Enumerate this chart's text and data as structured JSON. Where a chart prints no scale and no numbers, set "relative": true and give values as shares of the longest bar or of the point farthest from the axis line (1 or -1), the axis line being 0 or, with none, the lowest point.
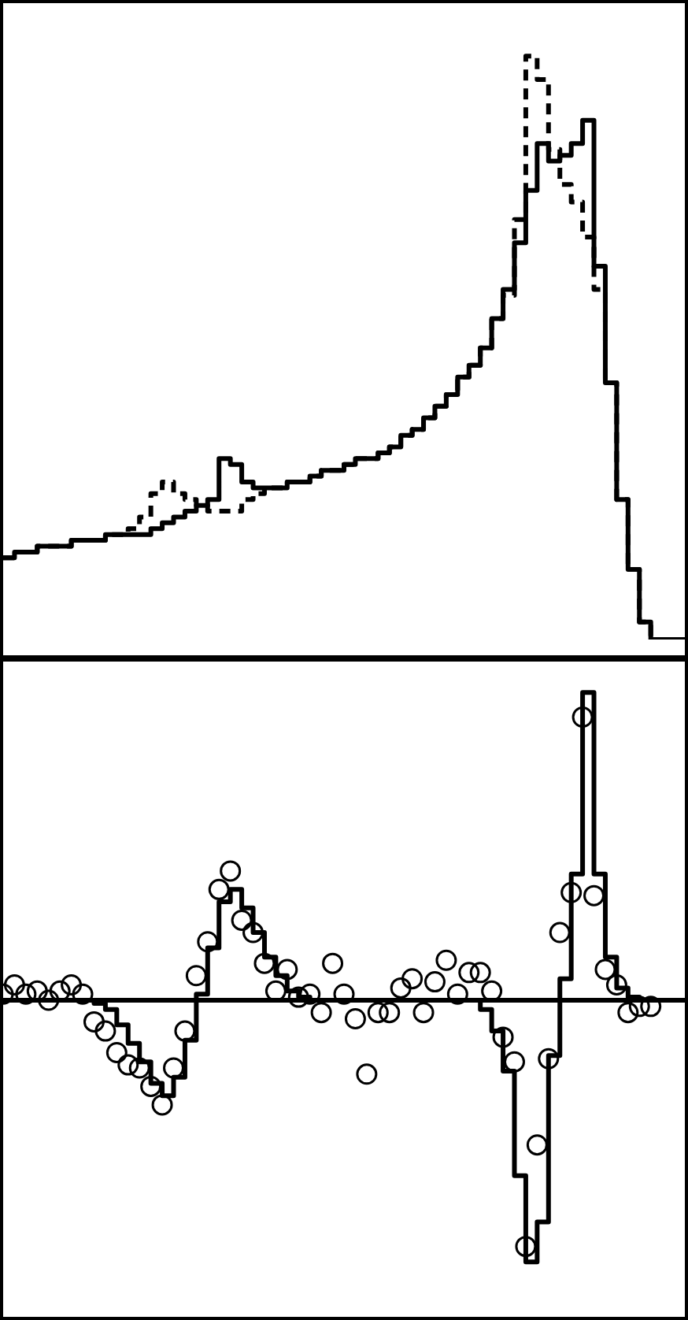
{
  "chart_data": [
    {
      "type": "step",
      "relative": true,
      "categories": [
        null,
        null,
        null,
        null,
        null,
        null,
        null,
        null,
        null,
        null,
        null,
        null,
        null,
        null,
        null,
        null,
        null,
        null,
        null,
        null,
        null,
        null,
        null,
        null,
        null,
        null,
        null,
        null,
        null,
        null,
        null,
        null,
        null,
        null,
        null,
        null,
        null,
        null,
        null,
        null,
        null,
        null,
        null,
        null,
        null,
        null,
        null,
        null,
        null,
        null,
        null,
        null,
        null,
        null,
        null,
        null,
        null,
        null,
        null,
        null,
        null
      ],
      "series": [
        {
          "color": "#000000",
          "line_style": "solid",
          "values": [
            0.14,
            0.15,
            0.15,
            0.16,
            0.16,
            0.16,
            0.17,
            0.17,
            0.17,
            0.18,
            0.18,
            0.18,
            0.18,
            0.19,
            0.2,
            0.21,
            0.22,
            0.23,
            0.24,
            0.31,
            0.3,
            0.27,
            0.26,
            0.26,
            0.26,
            0.27,
            0.27,
            0.28,
            0.29,
            0.29,
            0.3,
            0.31,
            0.31,
            0.32,
            0.33,
            0.35,
            0.36,
            0.38,
            0.4,
            0.42,
            0.45,
            0.47,
            0.5,
            0.55,
            0.6,
            0.68,
            0.77,
            0.85,
            0.82,
            0.83,
            0.85,
            0.89,
            0.64,
            0.44,
            0.24,
            0.12,
            0.03,
            0,
            0,
            0,
            0
          ]
        },
        {
          "color": "#000000",
          "line_style": "dashed",
          "values": [
            0.14,
            0.15,
            0.15,
            0.16,
            0.16,
            0.16,
            0.17,
            0.17,
            0.17,
            0.18,
            0.18,
            0.19,
            0.21,
            0.25,
            0.27,
            0.25,
            0.24,
            0.23,
            0.22,
            0.22,
            0.22,
            0.24,
            0.25,
            0.26,
            0.26,
            0.27,
            0.27,
            0.28,
            0.29,
            0.29,
            0.3,
            0.31,
            0.31,
            0.32,
            0.33,
            0.35,
            0.36,
            0.38,
            0.4,
            0.42,
            0.45,
            0.47,
            0.5,
            0.55,
            0.59,
            0.72,
            1.0,
            0.96,
            0.84,
            0.78,
            0.75,
            0.69,
            0.6,
            0.44,
            0.24,
            0.12,
            0.03,
            0,
            0,
            0,
            0
          ]
        }
      ]
    },
    {
      "type": "step",
      "relative": true,
      "categories": [
        null,
        null,
        null,
        null,
        null,
        null,
        null,
        null,
        null,
        null,
        null,
        null,
        null,
        null,
        null,
        null,
        null,
        null,
        null,
        null,
        null,
        null,
        null,
        null,
        null,
        null,
        null,
        null,
        null,
        null,
        null,
        null,
        null,
        null,
        null,
        null,
        null,
        null,
        null,
        null,
        null,
        null,
        null,
        null,
        null,
        null,
        null,
        null,
        null,
        null,
        null,
        null,
        null,
        null,
        null,
        null,
        null,
        null,
        null,
        null,
        null
      ],
      "series": [
        {
          "color": "#000000",
          "line_style": "solid",
          "values": [
            0,
            0,
            0,
            0,
            0,
            0,
            0,
            0,
            -0.01,
            -0.03,
            -0.08,
            -0.14,
            -0.2,
            -0.27,
            -0.31,
            -0.25,
            -0.13,
            0.02,
            0.17,
            0.32,
            0.36,
            0.3,
            0.22,
            0.14,
            0.08,
            0.03,
            0.01,
            0,
            0,
            0,
            0,
            0,
            0,
            0,
            0,
            0,
            0,
            0,
            0,
            0,
            0,
            0,
            -0.03,
            -0.1,
            -0.23,
            -0.57,
            -0.85,
            -0.72,
            -0.18,
            0.07,
            0.41,
            1.0,
            0.41,
            0.14,
            0.04,
            0.01,
            0,
            0,
            null,
            null,
            null
          ]
        },
        {
          "type": "scatter",
          "color": "#000000",
          "marker": "circle",
          "values": [
            0.02,
            0.05,
            0.02,
            0.03,
            0,
            0.03,
            0.05,
            0.02,
            -0.07,
            -0.1,
            -0.17,
            -0.21,
            -0.22,
            -0.28,
            -0.34,
            -0.22,
            -0.1,
            0.08,
            0.19,
            0.36,
            0.42,
            0.26,
            0.22,
            0.12,
            0.03,
            0.1,
            0.01,
            0.02,
            -0.04,
            0.12,
            0.02,
            -0.06,
            -0.24,
            -0.04,
            -0.04,
            0.04,
            0.07,
            -0.04,
            0.06,
            0.13,
            0.02,
            0.09,
            0.09,
            0.03,
            -0.12,
            -0.2,
            -0.8,
            -0.47,
            -0.19,
            0.22,
            0.35,
            0.92,
            0.34,
            0.1,
            0.05,
            -0.04,
            -0.02,
            -0.02,
            null,
            null,
            null
          ]
        }
      ]
    }
  ]
}
